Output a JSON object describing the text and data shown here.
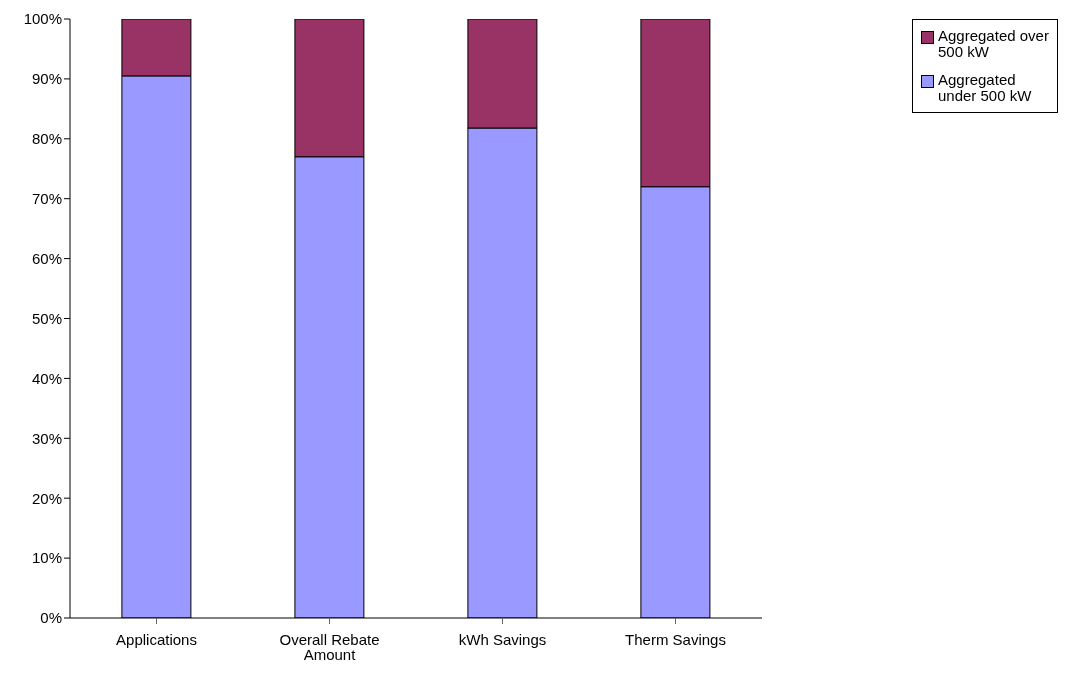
{
  "chart_data": {
    "type": "bar",
    "stacked": true,
    "categories": [
      "Applications",
      "Overall Rebate Amount",
      "kWh Savings",
      "Therm Savings"
    ],
    "series": [
      {
        "name": "Aggregated under 500 kW",
        "color": "#9999ff",
        "values": [
          90.5,
          77,
          81.8,
          72
        ]
      },
      {
        "name": "Aggregated over 500 kW",
        "color": "#993366",
        "values": [
          9.5,
          23,
          18.2,
          28
        ]
      }
    ],
    "ylim": [
      0,
      100
    ],
    "yticks": [
      {
        "value": 0,
        "label": "0%"
      },
      {
        "value": 10,
        "label": "10%"
      },
      {
        "value": 20,
        "label": "20%"
      },
      {
        "value": 30,
        "label": "30%"
      },
      {
        "value": 40,
        "label": "40%"
      },
      {
        "value": 50,
        "label": "50%"
      },
      {
        "value": 60,
        "label": "60%"
      },
      {
        "value": 70,
        "label": "70%"
      },
      {
        "value": 80,
        "label": "80%"
      },
      {
        "value": 90,
        "label": "90%"
      },
      {
        "value": 100,
        "label": "100%"
      }
    ],
    "grid": false,
    "legend": "top right"
  }
}
